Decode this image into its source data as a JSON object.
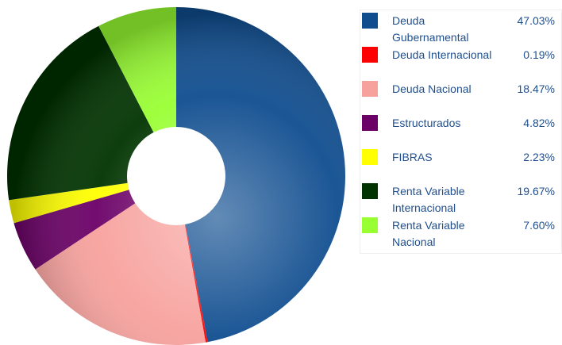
{
  "chart_data": {
    "type": "donut",
    "categories": [
      "Deuda Gubernamental",
      "Deuda Internacional",
      "Deuda Nacional",
      "Estructurados",
      "FIBRAS",
      "Renta Variable Internacional",
      "Renta Variable Nacional"
    ],
    "values": [
      47.03,
      0.19,
      18.47,
      4.82,
      2.23,
      19.67,
      7.6
    ],
    "value_labels": [
      "47.03%",
      "0.19%",
      "18.47%",
      "4.82%",
      "2.23%",
      "19.67%",
      "7.60%"
    ],
    "colors": [
      "#0f4d8f",
      "#ff0000",
      "#f7a19d",
      "#6b0067",
      "#ffff00",
      "#003300",
      "#99ff33"
    ],
    "legend": "right"
  }
}
